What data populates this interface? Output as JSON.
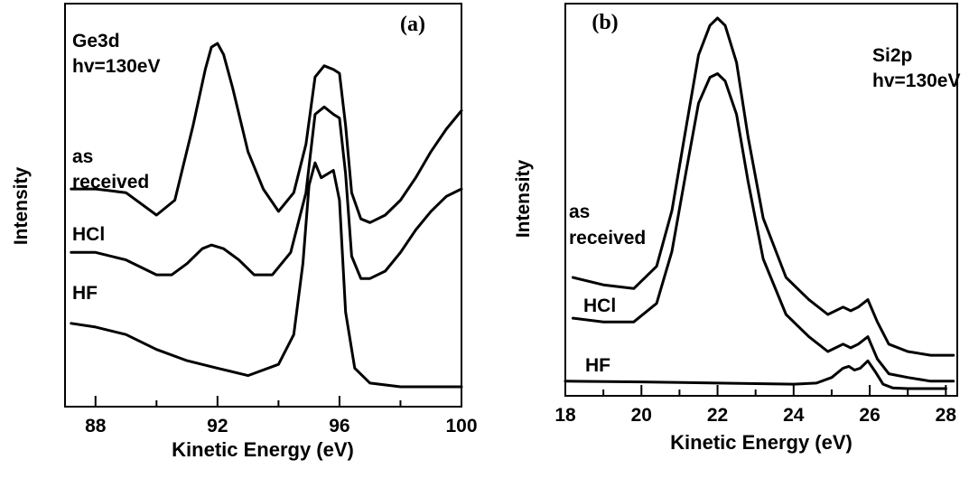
{
  "chart_data": [
    {
      "panel_label": "(a)",
      "type": "line",
      "title": "",
      "xlabel": "Kinetic Energy (eV)",
      "ylabel": "Intensity",
      "xlim": [
        87,
        100
      ],
      "xticks": [
        88,
        92,
        96,
        100
      ],
      "xticks_minor": [
        90,
        94,
        98
      ],
      "y_ticks_shown": false,
      "grid": false,
      "annotations": [
        "Ge3d",
        "hv=130eV"
      ],
      "series": [
        {
          "name": "as received",
          "label_lines": [
            "as",
            "received"
          ],
          "x": [
            87.2,
            88,
            89,
            90,
            90.6,
            91.2,
            91.6,
            91.8,
            92.0,
            92.2,
            92.5,
            93.0,
            93.5,
            94.0,
            94.5,
            94.9,
            95.2,
            95.5,
            95.8,
            96.0,
            96.2,
            96.4,
            96.7,
            97.0,
            97.5,
            98.0,
            98.5,
            99.0,
            99.5,
            100
          ],
          "y": [
            0.53,
            0.53,
            0.52,
            0.46,
            0.5,
            0.7,
            0.85,
            0.91,
            0.92,
            0.89,
            0.8,
            0.63,
            0.53,
            0.47,
            0.52,
            0.65,
            0.83,
            0.86,
            0.85,
            0.84,
            0.7,
            0.52,
            0.45,
            0.44,
            0.46,
            0.5,
            0.56,
            0.63,
            0.69,
            0.74
          ]
        },
        {
          "name": "HCl",
          "label_lines": [
            "HCl"
          ],
          "x": [
            87.2,
            88,
            89,
            90,
            90.5,
            91,
            91.5,
            91.8,
            92.2,
            92.7,
            93.2,
            93.8,
            94.4,
            94.9,
            95.2,
            95.5,
            95.8,
            96.0,
            96.2,
            96.4,
            96.7,
            97.0,
            97.5,
            98.0,
            98.5,
            99.0,
            99.5,
            100
          ],
          "y": [
            0.36,
            0.36,
            0.34,
            0.3,
            0.3,
            0.33,
            0.37,
            0.38,
            0.37,
            0.34,
            0.3,
            0.3,
            0.36,
            0.52,
            0.73,
            0.75,
            0.73,
            0.72,
            0.57,
            0.35,
            0.29,
            0.29,
            0.31,
            0.36,
            0.42,
            0.47,
            0.51,
            0.53
          ]
        },
        {
          "name": "HF",
          "label_lines": [
            "HF"
          ],
          "x": [
            87.2,
            88,
            89,
            90,
            91,
            92,
            93,
            94,
            94.5,
            94.8,
            95.0,
            95.2,
            95.4,
            95.6,
            95.8,
            96.0,
            96.2,
            96.5,
            97,
            98,
            99,
            100
          ],
          "y": [
            0.17,
            0.16,
            0.14,
            0.1,
            0.07,
            0.05,
            0.03,
            0.06,
            0.14,
            0.33,
            0.54,
            0.6,
            0.56,
            0.57,
            0.58,
            0.5,
            0.2,
            0.05,
            0.01,
            0.0,
            0.0,
            0.0
          ]
        }
      ]
    },
    {
      "panel_label": "(b)",
      "type": "line",
      "title": "",
      "xlabel": "Kinetic Energy (eV)",
      "ylabel": "Intensity",
      "xlim": [
        18,
        28.3
      ],
      "xticks": [
        18,
        20,
        22,
        24,
        26,
        28
      ],
      "xticks_minor": [
        19,
        21,
        23,
        25,
        27
      ],
      "y_ticks_shown": false,
      "grid": false,
      "annotations": [
        "Si2p",
        "hv=130eV"
      ],
      "series": [
        {
          "name": "as received",
          "label_lines": [
            "as",
            "received"
          ],
          "x": [
            18.2,
            19,
            19.8,
            20.4,
            20.8,
            21.2,
            21.5,
            21.8,
            22.0,
            22.2,
            22.5,
            22.8,
            23.2,
            23.8,
            24.4,
            24.9,
            25.3,
            25.5,
            25.7,
            25.95,
            26.2,
            26.5,
            27.0,
            27.6,
            28.2
          ],
          "y": [
            0.3,
            0.28,
            0.27,
            0.33,
            0.48,
            0.72,
            0.9,
            0.98,
            1.0,
            0.98,
            0.88,
            0.68,
            0.46,
            0.3,
            0.24,
            0.2,
            0.22,
            0.21,
            0.22,
            0.24,
            0.18,
            0.12,
            0.1,
            0.09,
            0.09
          ]
        },
        {
          "name": "HCl",
          "label_lines": [
            "HCl"
          ],
          "x": [
            18.2,
            19,
            19.8,
            20.4,
            20.8,
            21.2,
            21.5,
            21.8,
            22.0,
            22.2,
            22.5,
            22.8,
            23.2,
            23.8,
            24.4,
            24.9,
            25.3,
            25.5,
            25.7,
            25.95,
            26.2,
            26.5,
            27.0,
            27.6,
            28.2
          ],
          "y": [
            0.19,
            0.18,
            0.18,
            0.23,
            0.37,
            0.6,
            0.77,
            0.84,
            0.85,
            0.83,
            0.74,
            0.56,
            0.35,
            0.2,
            0.14,
            0.1,
            0.12,
            0.11,
            0.12,
            0.14,
            0.08,
            0.04,
            0.03,
            0.02,
            0.02
          ]
        },
        {
          "name": "HF",
          "label_lines": [
            "HF"
          ],
          "x": [
            18.0,
            20,
            22,
            24,
            24.6,
            25.0,
            25.3,
            25.45,
            25.6,
            25.75,
            25.95,
            26.15,
            26.35,
            26.6,
            27.0,
            28.0
          ],
          "y": [
            0.02,
            0.018,
            0.015,
            0.012,
            0.015,
            0.03,
            0.055,
            0.06,
            0.05,
            0.055,
            0.075,
            0.045,
            0.012,
            0.002,
            0.0,
            0.0
          ]
        }
      ]
    }
  ]
}
